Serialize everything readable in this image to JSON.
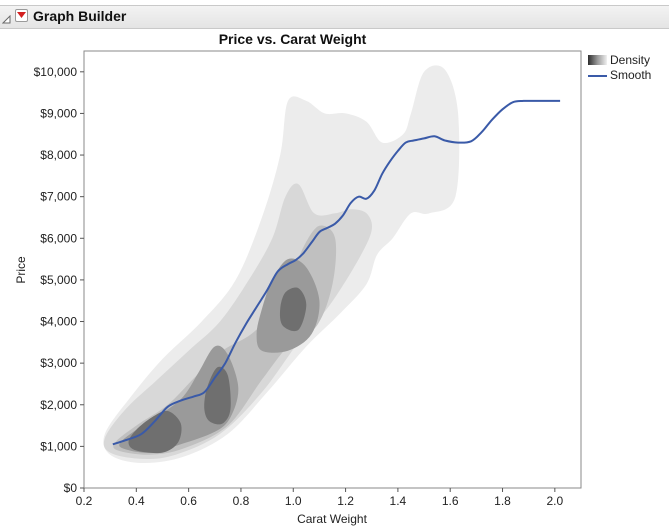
{
  "window": {
    "title": "Graph Builder",
    "disclosure_icon": "disclosure-triangle-icon",
    "menu_icon": "red-triangle-menu-icon",
    "menu_color": "#d32020"
  },
  "chart_data": {
    "type": "scatter",
    "title": "Price vs. Carat Weight",
    "xlabel": "Carat Weight",
    "ylabel": "Price",
    "xlim": [
      0.2,
      2.1
    ],
    "ylim": [
      0,
      10500
    ],
    "xticks": [
      "0.2",
      "0.4",
      "0.6",
      "0.8",
      "1.0",
      "1.2",
      "1.4",
      "1.6",
      "1.8",
      "2.0"
    ],
    "yticks": [
      "$0",
      "$1,000",
      "$2,000",
      "$3,000",
      "$4,000",
      "$5,000",
      "$6,000",
      "$7,000",
      "$8,000",
      "$9,000",
      "$10,000"
    ],
    "legend": {
      "position": "right",
      "entries": [
        {
          "label": "Density",
          "kind": "gradient"
        },
        {
          "label": "Smooth",
          "kind": "line"
        }
      ]
    },
    "colors": {
      "smooth": "#3a5aa8",
      "density_levels": [
        "#ececec",
        "#d8d8d8",
        "#c0c0c0",
        "#9a9a9a",
        "#6f6f6f",
        "#3c3c3c"
      ]
    },
    "smooth": {
      "name": "Smooth",
      "x": [
        0.31,
        0.36,
        0.42,
        0.47,
        0.52,
        0.57,
        0.62,
        0.66,
        0.7,
        0.74,
        0.78,
        0.82,
        0.86,
        0.9,
        0.94,
        0.98,
        1.01,
        1.04,
        1.07,
        1.1,
        1.13,
        1.16,
        1.19,
        1.22,
        1.25,
        1.28,
        1.31,
        1.34,
        1.37,
        1.4,
        1.43,
        1.46,
        1.5,
        1.54,
        1.58,
        1.63,
        1.68,
        1.72,
        1.76,
        1.8,
        1.84,
        1.88,
        1.92,
        1.96,
        2.0,
        2.02
      ],
      "y": [
        1050,
        1150,
        1300,
        1600,
        1950,
        2100,
        2200,
        2300,
        2650,
        3000,
        3500,
        3950,
        4350,
        4750,
        5200,
        5380,
        5480,
        5650,
        5900,
        6150,
        6250,
        6350,
        6550,
        6850,
        7000,
        6950,
        7150,
        7550,
        7850,
        8100,
        8300,
        8350,
        8400,
        8450,
        8350,
        8300,
        8330,
        8550,
        8850,
        9100,
        9270,
        9300,
        9300,
        9300,
        9300,
        9300
      ]
    },
    "density": [
      {
        "level": 0,
        "points": [
          [
            0.3,
            800
          ],
          [
            0.42,
            600
          ],
          [
            0.58,
            750
          ],
          [
            0.75,
            1300
          ],
          [
            0.9,
            2300
          ],
          [
            1.05,
            3400
          ],
          [
            1.18,
            4200
          ],
          [
            1.28,
            4900
          ],
          [
            1.32,
            5600
          ],
          [
            1.38,
            6000
          ],
          [
            1.45,
            6600
          ],
          [
            1.52,
            6600
          ],
          [
            1.62,
            7000
          ],
          [
            1.63,
            9000
          ],
          [
            1.58,
            10050
          ],
          [
            1.5,
            10000
          ],
          [
            1.45,
            9000
          ],
          [
            1.42,
            8500
          ],
          [
            1.34,
            8300
          ],
          [
            1.28,
            8800
          ],
          [
            1.2,
            9000
          ],
          [
            1.12,
            9000
          ],
          [
            1.05,
            9300
          ],
          [
            0.98,
            9300
          ],
          [
            0.95,
            8000
          ],
          [
            0.88,
            6500
          ],
          [
            0.78,
            5000
          ],
          [
            0.65,
            4000
          ],
          [
            0.5,
            3100
          ],
          [
            0.38,
            2200
          ],
          [
            0.28,
            1300
          ]
        ]
      },
      {
        "level": 1,
        "points": [
          [
            0.3,
            850
          ],
          [
            0.42,
            700
          ],
          [
            0.55,
            800
          ],
          [
            0.72,
            1300
          ],
          [
            0.88,
            2300
          ],
          [
            1.02,
            3500
          ],
          [
            1.14,
            4400
          ],
          [
            1.25,
            5500
          ],
          [
            1.3,
            6200
          ],
          [
            1.28,
            6600
          ],
          [
            1.22,
            6700
          ],
          [
            1.16,
            6600
          ],
          [
            1.08,
            6600
          ],
          [
            1.02,
            7300
          ],
          [
            0.97,
            7000
          ],
          [
            0.92,
            6000
          ],
          [
            0.83,
            5000
          ],
          [
            0.72,
            4000
          ],
          [
            0.6,
            3300
          ],
          [
            0.48,
            2600
          ],
          [
            0.36,
            1900
          ],
          [
            0.28,
            1200
          ]
        ]
      },
      {
        "level": 2,
        "points": [
          [
            0.33,
            900
          ],
          [
            0.45,
            800
          ],
          [
            0.58,
            950
          ],
          [
            0.75,
            1500
          ],
          [
            0.88,
            2600
          ],
          [
            0.98,
            3400
          ],
          [
            1.09,
            3900
          ],
          [
            1.15,
            4900
          ],
          [
            1.16,
            6000
          ],
          [
            1.1,
            6300
          ],
          [
            1.04,
            5800
          ],
          [
            0.99,
            5000
          ],
          [
            0.93,
            4300
          ],
          [
            0.84,
            3700
          ],
          [
            0.73,
            3300
          ],
          [
            0.63,
            2700
          ],
          [
            0.52,
            2000
          ],
          [
            0.4,
            1500
          ],
          [
            0.32,
            1100
          ]
        ]
      },
      {
        "level": 3,
        "points": [
          [
            0.35,
            950
          ],
          [
            0.45,
            850
          ],
          [
            0.57,
            1050
          ],
          [
            0.7,
            1350
          ],
          [
            0.76,
            1700
          ],
          [
            0.79,
            2400
          ],
          [
            0.75,
            3200
          ],
          [
            0.7,
            3400
          ],
          [
            0.64,
            2800
          ],
          [
            0.58,
            2200
          ],
          [
            0.5,
            1800
          ],
          [
            0.4,
            1400
          ],
          [
            0.34,
            1100
          ]
        ]
      },
      {
        "level": 3,
        "points": [
          [
            0.88,
            3300
          ],
          [
            0.98,
            3300
          ],
          [
            1.07,
            3700
          ],
          [
            1.1,
            4500
          ],
          [
            1.05,
            5300
          ],
          [
            0.98,
            5500
          ],
          [
            0.92,
            5000
          ],
          [
            0.88,
            4300
          ],
          [
            0.86,
            3700
          ]
        ]
      },
      {
        "level": 4,
        "points": [
          [
            0.4,
            900
          ],
          [
            0.5,
            850
          ],
          [
            0.56,
            1100
          ],
          [
            0.57,
            1550
          ],
          [
            0.52,
            1850
          ],
          [
            0.46,
            1700
          ],
          [
            0.4,
            1400
          ],
          [
            0.37,
            1100
          ]
        ]
      },
      {
        "level": 4,
        "points": [
          [
            0.68,
            1600
          ],
          [
            0.73,
            1550
          ],
          [
            0.76,
            1900
          ],
          [
            0.75,
            2700
          ],
          [
            0.71,
            2900
          ],
          [
            0.67,
            2400
          ],
          [
            0.66,
            1900
          ]
        ]
      },
      {
        "level": 4,
        "points": [
          [
            0.96,
            3900
          ],
          [
            1.02,
            3800
          ],
          [
            1.05,
            4400
          ],
          [
            1.02,
            4800
          ],
          [
            0.97,
            4700
          ],
          [
            0.95,
            4300
          ]
        ]
      }
    ]
  }
}
